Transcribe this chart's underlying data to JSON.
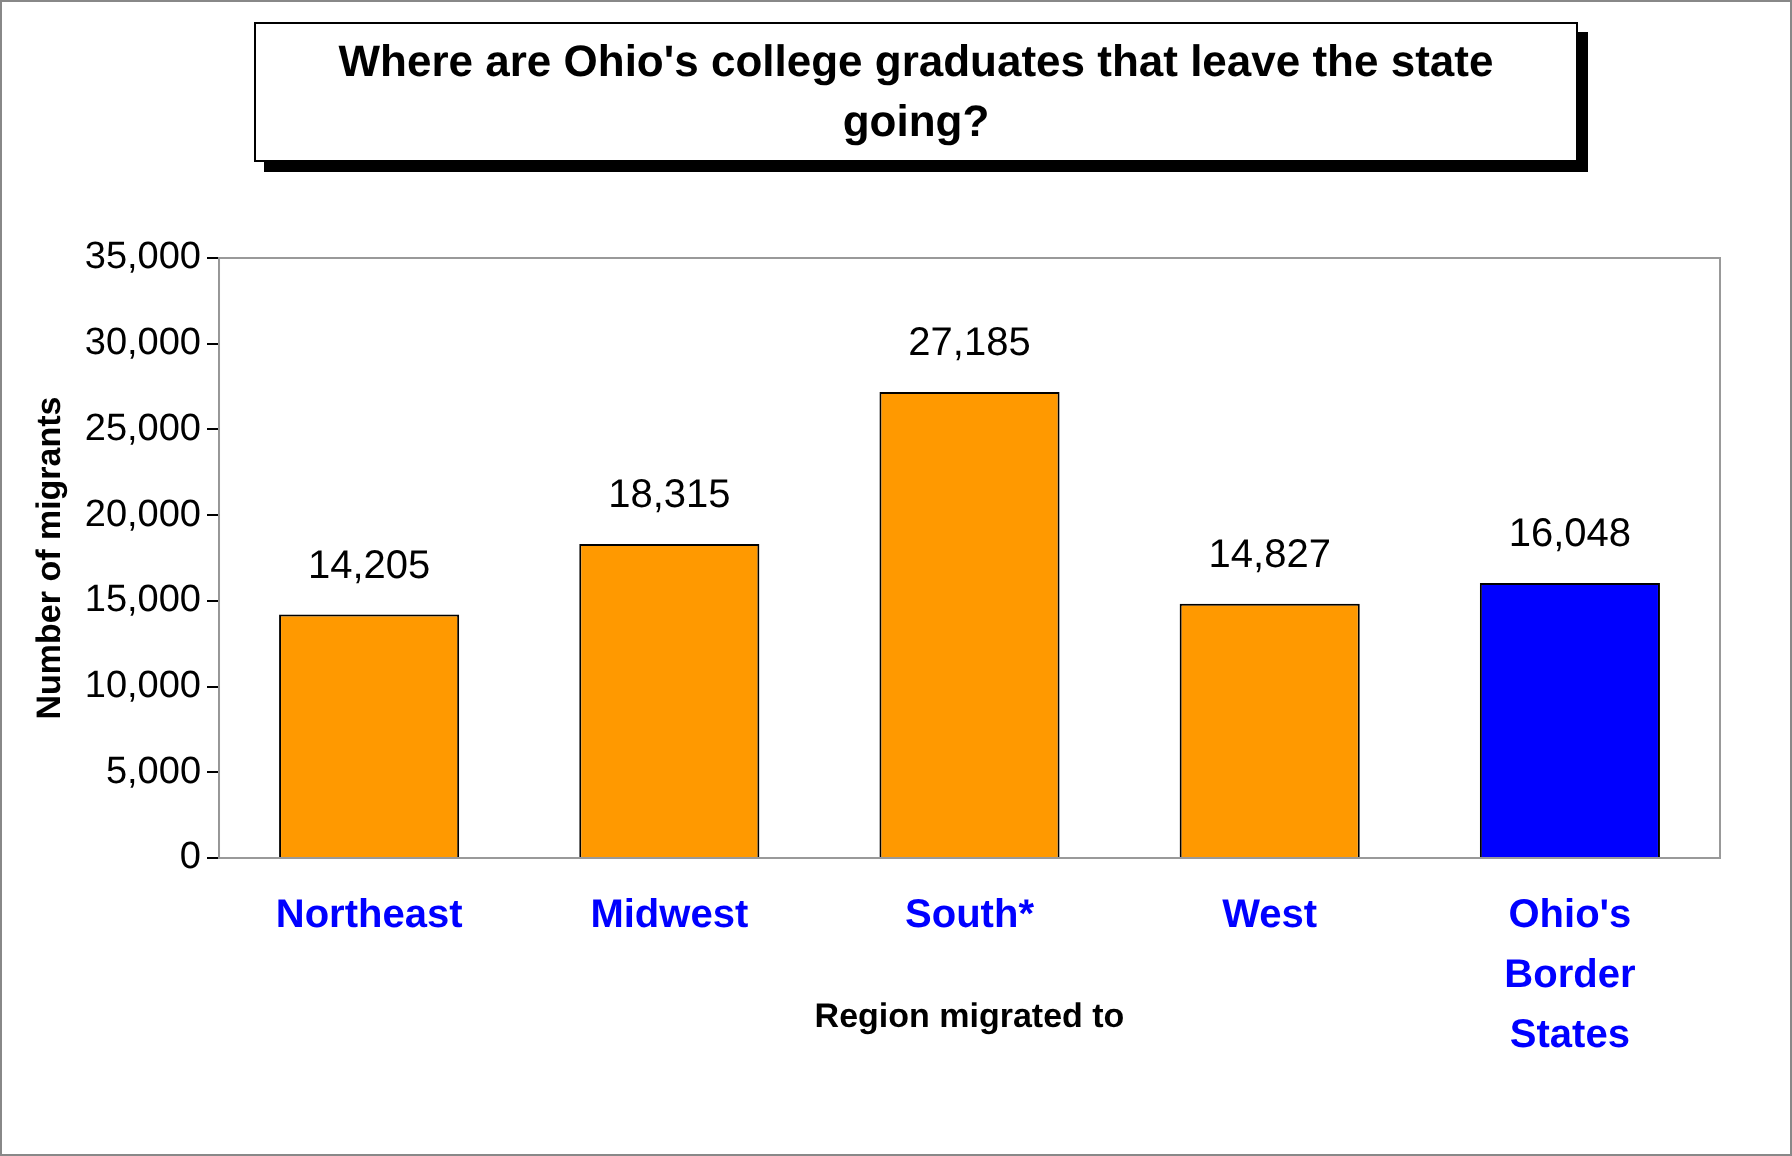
{
  "chart_data": {
    "type": "bar",
    "title": "Where are Ohio's college graduates that leave the state going?",
    "xlabel": "Region migrated to",
    "ylabel": "Number of migrants",
    "categories": [
      "Northeast",
      "Midwest",
      "South*",
      "West",
      "Ohio's Border States"
    ],
    "values": [
      14205,
      18315,
      27185,
      14827,
      16048
    ],
    "value_labels": [
      "14,205",
      "18,315",
      "27,185",
      "14,827",
      "16,048"
    ],
    "colors": [
      "#ff9900",
      "#ff9900",
      "#ff9900",
      "#ff9900",
      "#0000ff"
    ],
    "ylim": [
      0,
      35000
    ],
    "yticks": [
      0,
      {
        "value": 5000,
        "label": "5,000"
      },
      {
        "value": 10000,
        "label": "10,000"
      },
      {
        "value": 15000,
        "label": "15,000"
      },
      {
        "value": 20000,
        "label": "20,000"
      },
      {
        "value": 25000,
        "label": "25,000"
      },
      {
        "value": 30000,
        "label": "30,000"
      },
      {
        "value": 35000,
        "label": "35,000"
      }
    ],
    "grid": false,
    "legend": false
  }
}
